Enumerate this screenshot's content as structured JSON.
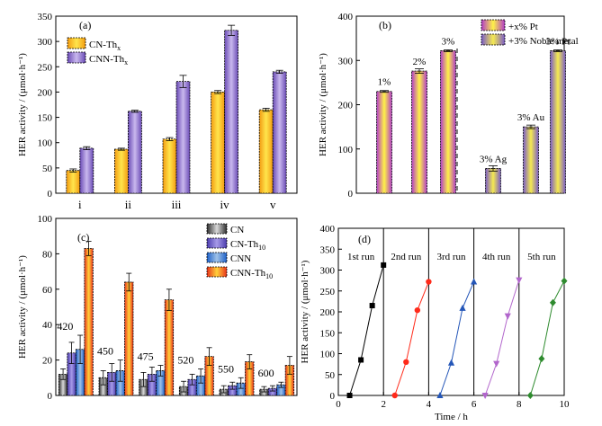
{
  "colors": {
    "cn_thx": [
      "#f39c12",
      "#ffe54c",
      "#f39c12"
    ],
    "cnn_thx": [
      "#6a4bb5",
      "#c9b8ee",
      "#6a4bb5"
    ],
    "pt": [
      "#b23cc9",
      "#fff247",
      "#b23cc9"
    ],
    "noble": [
      "#7a5cc8",
      "#f5ea50",
      "#7a5cc8"
    ],
    "cn": [
      "#2e2e2e",
      "#d9d9d9",
      "#2e2e2e"
    ],
    "cn_th10": [
      "#4b3cae",
      "#a79be8",
      "#4b3cae"
    ],
    "cnn": [
      "#1f62c9",
      "#9fc2e8",
      "#1f62c9"
    ],
    "cnn_th10": [
      "#e8321b",
      "#ffd13a",
      "#e8321b"
    ],
    "run_colors": [
      "#000000",
      "#ff2a1a",
      "#2456b8",
      "#b266cc",
      "#2e8b2e"
    ]
  },
  "chart_data": [
    {
      "panel": "(a)",
      "type": "bar",
      "ylabel": "HER activity / (μmol·h⁻¹)",
      "ylim": [
        0,
        350
      ],
      "yticks": [
        "0",
        "50",
        "100",
        "150",
        "200",
        "250",
        "300",
        "350"
      ],
      "categories": [
        "i",
        "ii",
        "iii",
        "iv",
        "v"
      ],
      "legend": {
        "placement": "top-left",
        "entries": [
          {
            "prefix": "CN-Th",
            "sub": "x"
          },
          {
            "prefix": "CNN-Th",
            "sub": "x"
          }
        ]
      },
      "series": [
        {
          "key": "cn_thx",
          "values": [
            45,
            87,
            107,
            200,
            165
          ],
          "errors": [
            3,
            2,
            3,
            3,
            3
          ]
        },
        {
          "key": "cnn_thx",
          "values": [
            89,
            162,
            221,
            322,
            240
          ],
          "errors": [
            3,
            2,
            12,
            10,
            3
          ]
        }
      ]
    },
    {
      "panel": "(b)",
      "type": "bar",
      "ylabel": "HER activity / (μmol·h⁻¹)",
      "ylim": [
        0,
        400
      ],
      "yticks": [
        "0",
        "100",
        "200",
        "300",
        "400"
      ],
      "legend": {
        "placement": "top-center",
        "entries": [
          "+x% Pt",
          "+3% Noble metal"
        ]
      },
      "bars": [
        {
          "label": "1%",
          "value": 230,
          "error": 2,
          "key": "pt"
        },
        {
          "label": "2%",
          "value": 276,
          "error": 5,
          "key": "pt"
        },
        {
          "label": "3%",
          "value": 322,
          "error": 2,
          "key": "pt"
        },
        {
          "label": "3% Ag",
          "value": 56,
          "error": 6,
          "key": "noble"
        },
        {
          "label": "3% Au",
          "value": 150,
          "error": 4,
          "key": "noble"
        },
        {
          "label": "3% Pt",
          "value": 322,
          "error": 2,
          "key": "noble"
        }
      ]
    },
    {
      "panel": "(c)",
      "type": "bar",
      "ylabel": "HER activity / (μmol·h⁻¹)",
      "ylim": [
        0,
        100
      ],
      "yticks": [
        "0",
        "20",
        "40",
        "60",
        "80",
        "100"
      ],
      "categories": [
        "420",
        "450",
        "475",
        "520",
        "550",
        "600"
      ],
      "legend": {
        "placement": "top-right",
        "entries": [
          {
            "prefix": "CN",
            "sub": ""
          },
          {
            "prefix": "CN-Th",
            "sub": "10"
          },
          {
            "prefix": "CNN",
            "sub": ""
          },
          {
            "prefix": "CNN-Th",
            "sub": "10"
          }
        ]
      },
      "series": [
        {
          "key": "cn",
          "values": [
            12,
            10,
            9,
            5,
            3.5,
            3.5
          ],
          "errors": [
            3,
            4,
            4,
            3,
            2,
            1.5
          ]
        },
        {
          "key": "cn_th10",
          "values": [
            24,
            13,
            12,
            9,
            5.5,
            4
          ],
          "errors": [
            6,
            5,
            4,
            3,
            2,
            1.5
          ]
        },
        {
          "key": "cnn",
          "values": [
            26,
            14,
            14,
            11,
            7,
            6
          ],
          "errors": [
            8,
            6,
            3,
            4,
            3,
            1.5
          ]
        },
        {
          "key": "cnn_th10",
          "values": [
            83,
            64,
            54,
            22,
            19,
            17
          ],
          "errors": [
            4,
            5,
            6,
            5,
            4,
            5
          ]
        }
      ]
    },
    {
      "panel": "(d)",
      "type": "line",
      "xlabel": "Time / h",
      "ylabel": "HER activity / (μmol·h⁻¹)",
      "xlim": [
        0,
        10
      ],
      "ylim": [
        0,
        400
      ],
      "xticks": [
        "0",
        "2",
        "4",
        "6",
        "8",
        "10"
      ],
      "yticks": [
        "0",
        "50",
        "100",
        "150",
        "200",
        "250",
        "300",
        "350",
        "400"
      ],
      "dividers": [
        2,
        4,
        6,
        8
      ],
      "series": [
        {
          "name": "1st run",
          "marker": "square",
          "points": [
            [
              0.5,
              0
            ],
            [
              1.0,
              85
            ],
            [
              1.5,
              215
            ],
            [
              2.0,
              312
            ]
          ]
        },
        {
          "name": "2nd run",
          "marker": "circle",
          "points": [
            [
              2.5,
              0
            ],
            [
              3.0,
              80
            ],
            [
              3.5,
              204
            ],
            [
              4.0,
              272
            ]
          ]
        },
        {
          "name": "3rd run",
          "marker": "triangle",
          "points": [
            [
              4.5,
              0
            ],
            [
              5.0,
              78
            ],
            [
              5.5,
              209
            ],
            [
              6.0,
              272
            ]
          ]
        },
        {
          "name": "4th run",
          "marker": "triangle-down",
          "points": [
            [
              6.5,
              0
            ],
            [
              7.0,
              76
            ],
            [
              7.5,
              190
            ],
            [
              8.0,
              276
            ]
          ]
        },
        {
          "name": "5th run",
          "marker": "diamond",
          "points": [
            [
              8.5,
              0
            ],
            [
              9.0,
              88
            ],
            [
              9.5,
              222
            ],
            [
              10.0,
              274
            ]
          ]
        }
      ]
    }
  ]
}
